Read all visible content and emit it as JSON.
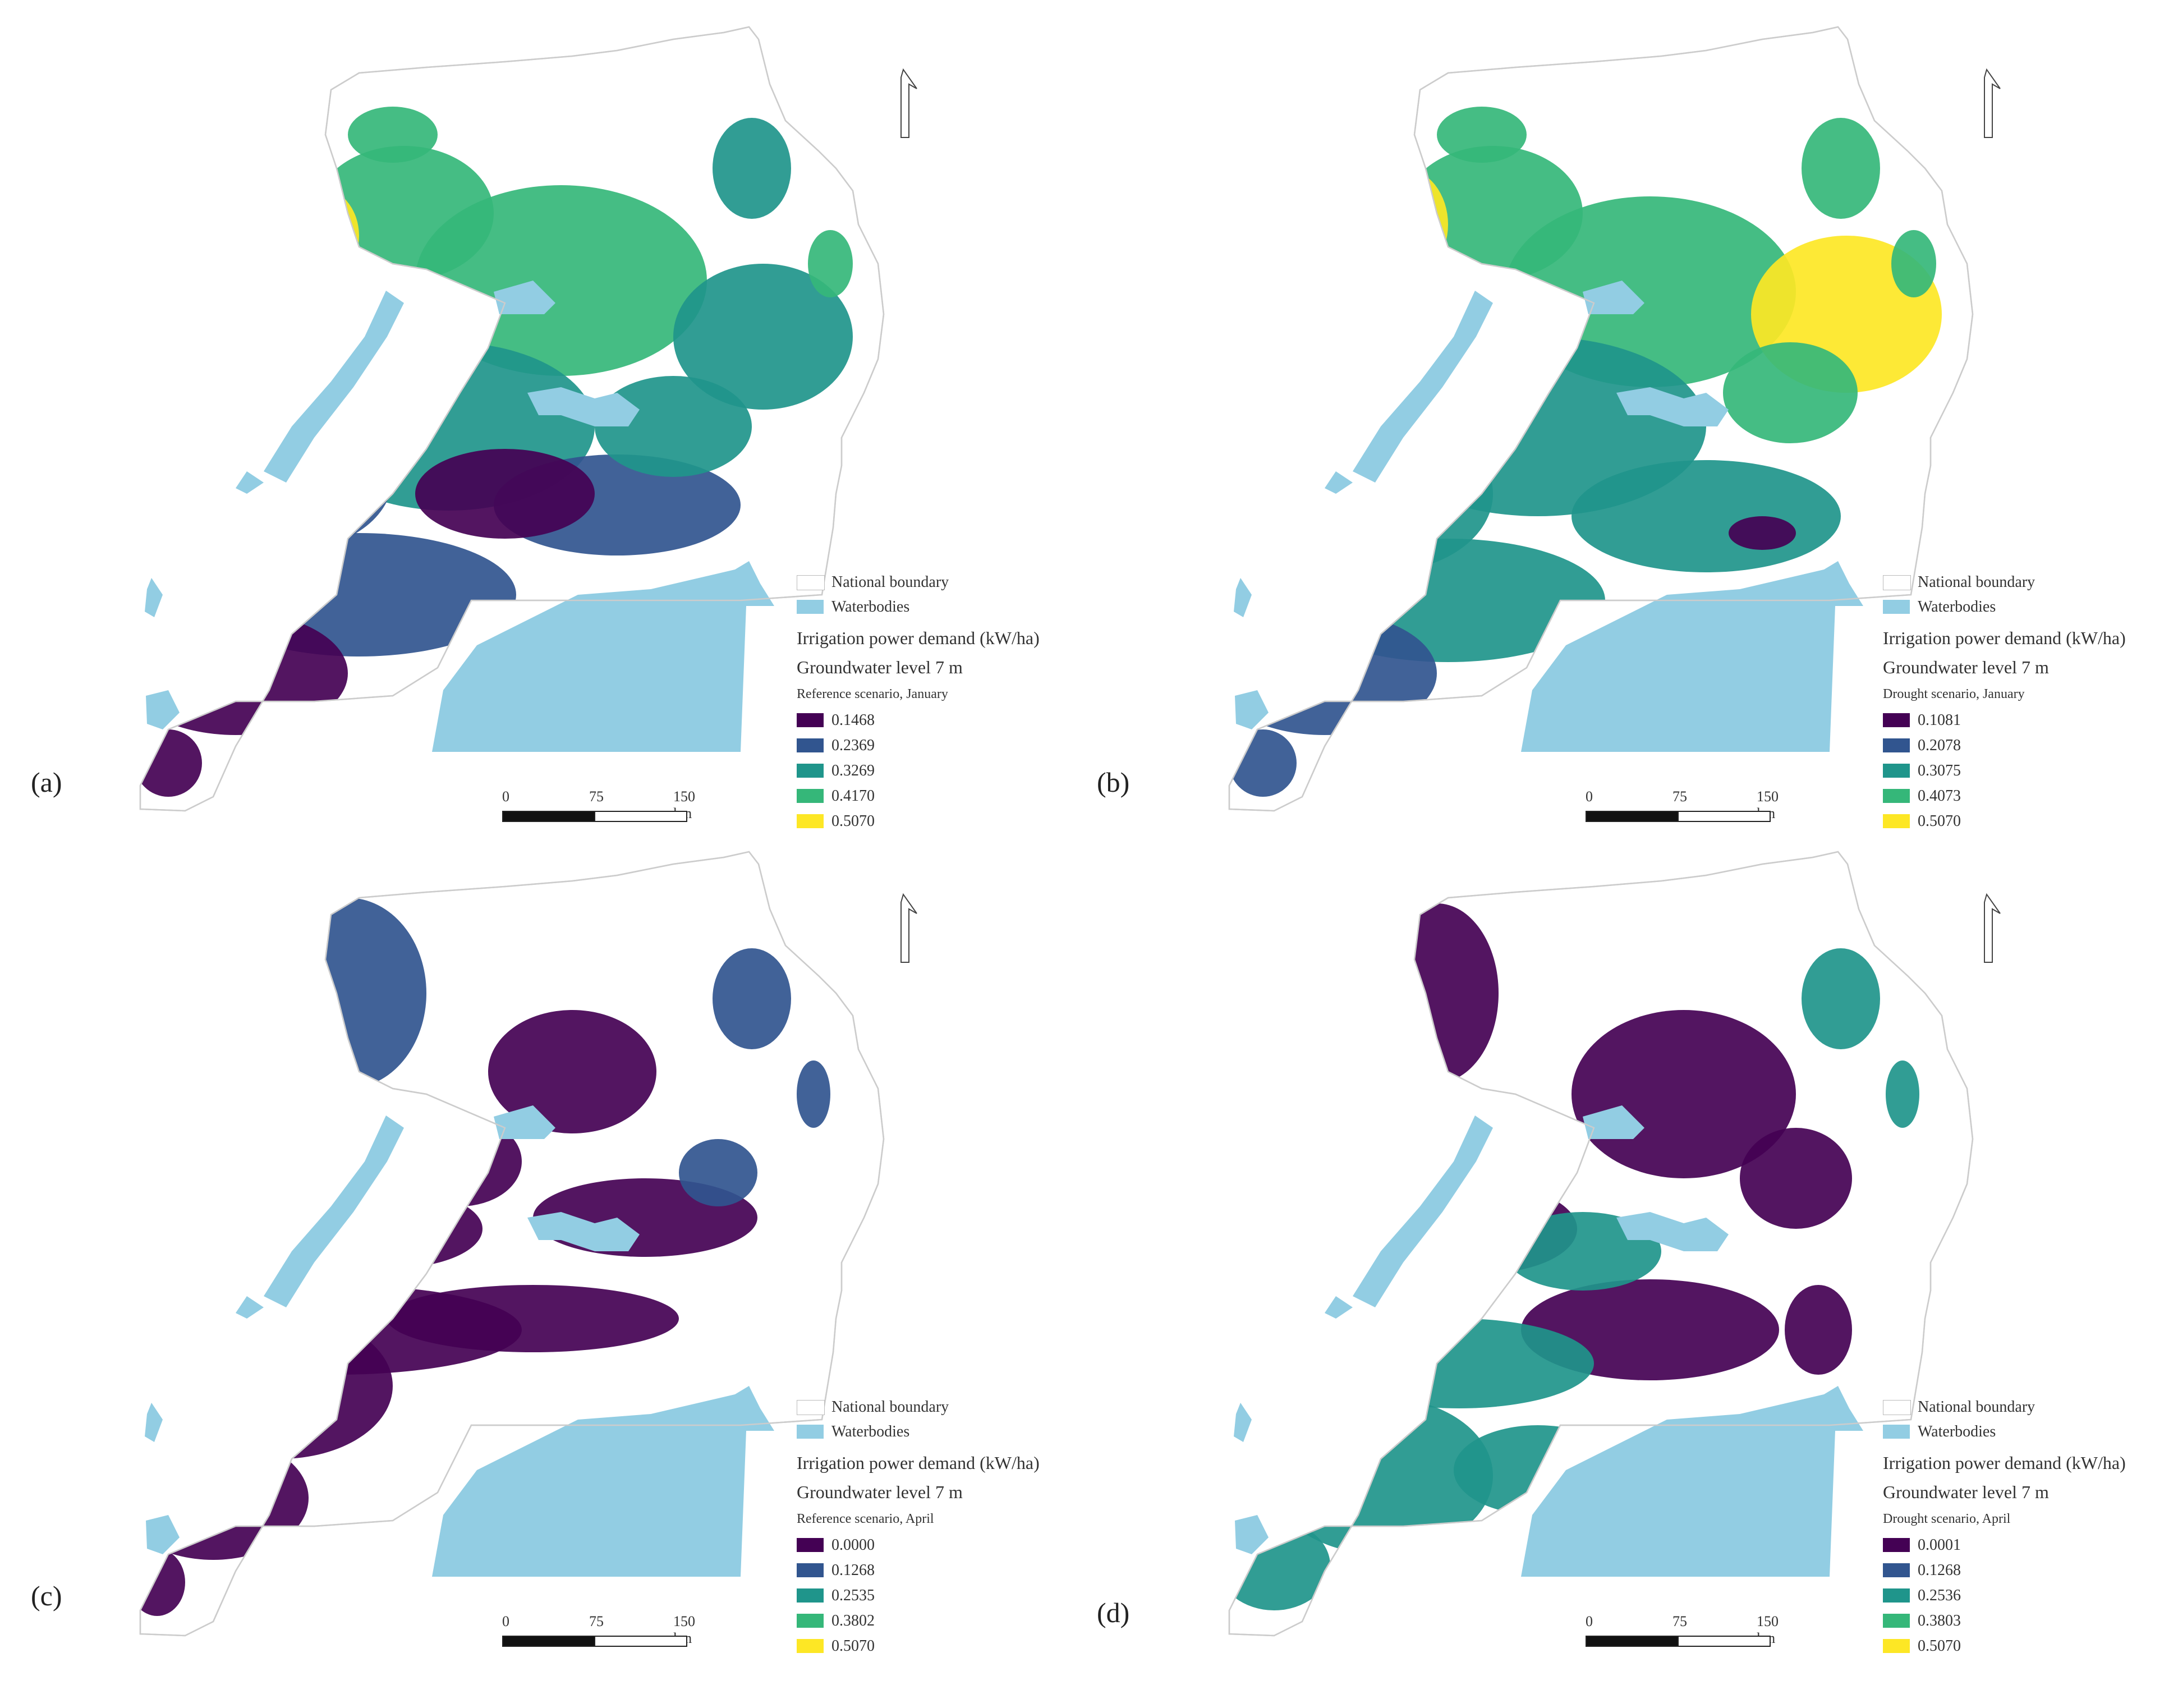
{
  "colors": {
    "waterbody": "#92cde3",
    "boundary": "#cccccc",
    "ramp": [
      "#440154",
      "#31558f",
      "#1f958b",
      "#35b779",
      "#fde725"
    ]
  },
  "scale_labels": [
    "0",
    "75",
    "150 km"
  ],
  "legend_common": {
    "boundary_label": "National boundary",
    "water_label": "Waterbodies",
    "title": "Irrigation power demand (kW/ha)",
    "groundwater": "Groundwater level 7 m"
  },
  "icons": {
    "north": "north-arrow-icon"
  },
  "panels": [
    {
      "letter": "(a)",
      "scenario": "Reference scenario, January",
      "values": [
        "0.1468",
        "0.2369",
        "0.3269",
        "0.4170",
        "0.5070"
      ]
    },
    {
      "letter": "(b)",
      "scenario": "Drought scenario, January",
      "values": [
        "0.1081",
        "0.2078",
        "0.3075",
        "0.4073",
        "0.5070"
      ]
    },
    {
      "letter": "(c)",
      "scenario": "Reference scenario, April",
      "values": [
        "0.0000",
        "0.1268",
        "0.2535",
        "0.3802",
        "0.5070"
      ]
    },
    {
      "letter": "(d)",
      "scenario": "Drought scenario, April",
      "values": [
        "0.0001",
        "0.1268",
        "0.2536",
        "0.3803",
        "0.5070"
      ]
    }
  ]
}
